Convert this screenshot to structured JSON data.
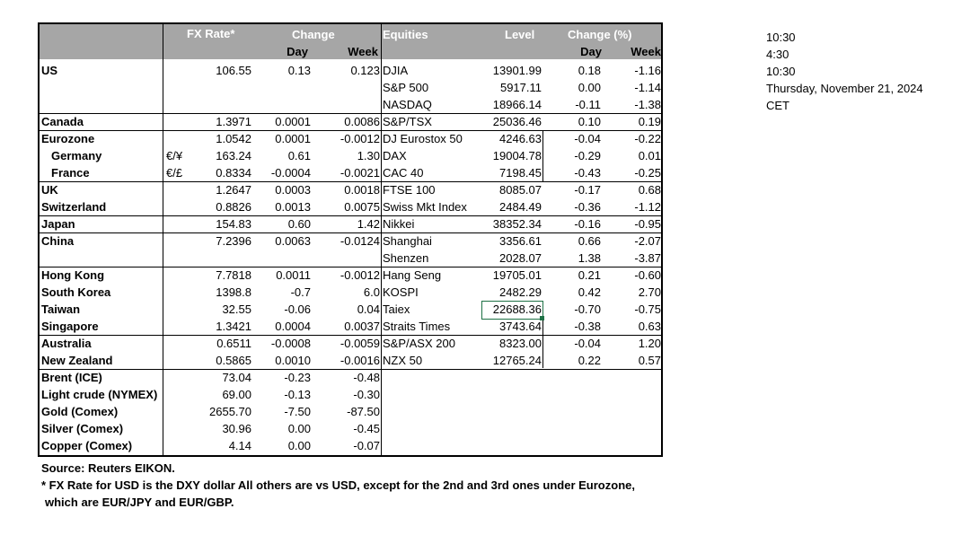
{
  "header": {
    "fx_rate": "FX Rate*",
    "change": "Change",
    "day": "Day",
    "week": "Week",
    "equities": "Equities",
    "level": "Level",
    "change_pct": "Change (%)",
    "eq_day": "Day",
    "eq_week": "Week"
  },
  "rows": [
    {
      "country": "US",
      "ind": false,
      "sym": "",
      "fx": "106.55",
      "day": "0.13",
      "week": "0.123",
      "eq": "DJIA",
      "level": "13901.99",
      "eday": "0.18",
      "eweek": "-1.16"
    },
    {
      "country": "",
      "ind": false,
      "sym": "",
      "fx": "",
      "day": "",
      "week": "",
      "eq": "S&P 500",
      "level": "5917.11",
      "eday": "0.00",
      "eweek": "-1.14"
    },
    {
      "country": "",
      "ind": false,
      "sym": "",
      "fx": "",
      "day": "",
      "week": "",
      "eq": "NASDAQ",
      "level": "18966.14",
      "eday": "-0.11",
      "eweek": "-1.38"
    },
    {
      "country": "Canada",
      "ind": false,
      "sym": "",
      "fx": "1.3971",
      "day": "0.0001",
      "week": "0.0086",
      "eq": "S&P/TSX",
      "level": "25036.46",
      "eday": "0.10",
      "eweek": "0.19"
    },
    {
      "country": "Eurozone",
      "ind": false,
      "sym": "",
      "fx": "1.0542",
      "day": "0.0001",
      "week": "-0.0012",
      "eq": "DJ Eurostox 50",
      "level": "4246.63",
      "eday": "-0.04",
      "eweek": "-0.22"
    },
    {
      "country": "Germany",
      "ind": true,
      "sym": "€/¥",
      "fx": "163.24",
      "day": "0.61",
      "week": "1.30",
      "eq": "DAX",
      "level": "19004.78",
      "eday": "-0.29",
      "eweek": "0.01"
    },
    {
      "country": "France",
      "ind": true,
      "sym": "€/£",
      "fx": "0.8334",
      "day": "-0.0004",
      "week": "-0.0021",
      "eq": "CAC 40",
      "level": "7198.45",
      "eday": "-0.43",
      "eweek": "-0.25"
    },
    {
      "country": "UK",
      "ind": false,
      "sym": "",
      "fx": "1.2647",
      "day": "0.0003",
      "week": "0.0018",
      "eq": "FTSE 100",
      "level": "8085.07",
      "eday": "-0.17",
      "eweek": "0.68"
    },
    {
      "country": "Switzerland",
      "ind": false,
      "sym": "",
      "fx": "0.8826",
      "day": "0.0013",
      "week": "0.0075",
      "eq": "Swiss Mkt Index",
      "level": "2484.49",
      "eday": "-0.36",
      "eweek": "-1.12"
    },
    {
      "country": "Japan",
      "ind": false,
      "sym": "",
      "fx": "154.83",
      "day": "0.60",
      "week": "1.42",
      "eq": "Nikkei",
      "level": "38352.34",
      "eday": "-0.16",
      "eweek": "-0.95"
    },
    {
      "country": "China",
      "ind": false,
      "sym": "",
      "fx": "7.2396",
      "day": "0.0063",
      "week": "-0.0124",
      "eq": "Shanghai",
      "level": "3356.61",
      "eday": "0.66",
      "eweek": "-2.07"
    },
    {
      "country": "",
      "ind": false,
      "sym": "",
      "fx": "",
      "day": "",
      "week": "",
      "eq": "Shenzen",
      "level": "2028.07",
      "eday": "1.38",
      "eweek": "-3.87"
    },
    {
      "country": "Hong Kong",
      "ind": false,
      "sym": "",
      "fx": "7.7818",
      "day": "0.0011",
      "week": "-0.0012",
      "eq": "Hang Seng",
      "level": "19705.01",
      "eday": "0.21",
      "eweek": "-0.60"
    },
    {
      "country": "South Korea",
      "ind": false,
      "sym": "",
      "fx": "1398.8",
      "day": "-0.7",
      "week": "6.0",
      "eq": "KOSPI",
      "level": "2482.29",
      "eday": "0.42",
      "eweek": "2.70"
    },
    {
      "country": "Taiwan",
      "ind": false,
      "sym": "",
      "fx": "32.55",
      "day": "-0.06",
      "week": "0.04",
      "eq": "Taiex",
      "level": "22688.36",
      "eday": "-0.70",
      "eweek": "-0.75"
    },
    {
      "country": "Singapore",
      "ind": false,
      "sym": "",
      "fx": "1.3421",
      "day": "0.0004",
      "week": "0.0037",
      "eq": "Straits Times",
      "level": "3743.64",
      "eday": "-0.38",
      "eweek": "0.63"
    },
    {
      "country": "Australia",
      "ind": false,
      "sym": "",
      "fx": "0.6511",
      "day": "-0.0008",
      "week": "-0.0059",
      "eq": "S&P/ASX  200",
      "level": "8323.00",
      "eday": "-0.04",
      "eweek": "1.20"
    },
    {
      "country": "New Zealand",
      "ind": false,
      "sym": "",
      "fx": "0.5865",
      "day": "0.0010",
      "week": "-0.0016",
      "eq": "NZX 50",
      "level": "12765.24",
      "eday": "0.22",
      "eweek": "0.57"
    },
    {
      "country": "Brent (ICE)",
      "ind": false,
      "sym": "",
      "fx": "73.04",
      "day": "-0.23",
      "week": "-0.48",
      "eq": "",
      "level": "",
      "eday": "",
      "eweek": ""
    },
    {
      "country": "Light crude (NYMEX)",
      "ind": false,
      "sym": "",
      "fx": "69.00",
      "day": "-0.13",
      "week": "-0.30",
      "eq": "",
      "level": "",
      "eday": "",
      "eweek": ""
    },
    {
      "country": "Gold (Comex)",
      "ind": false,
      "sym": "",
      "fx": "2655.70",
      "day": "-7.50",
      "week": "-87.50",
      "eq": "",
      "level": "",
      "eday": "",
      "eweek": ""
    },
    {
      "country": "Silver (Comex)",
      "ind": false,
      "sym": "",
      "fx": "30.96",
      "day": "0.00",
      "week": "-0.45",
      "eq": "",
      "level": "",
      "eday": "",
      "eweek": ""
    },
    {
      "country": "Copper (Comex)",
      "ind": false,
      "sym": "",
      "fx": "4.14",
      "day": "0.00",
      "week": "-0.07",
      "eq": "",
      "level": "",
      "eday": "",
      "eweek": ""
    }
  ],
  "notes": {
    "source": "Source:  Reuters EIKON.",
    "footnote1": "* FX Rate for USD is the DXY dollar  All others are vs USD, except for the 2nd and 3rd ones under Eurozone,",
    "footnote2": "which are EUR/JPY and EUR/GBP."
  },
  "times": [
    "10:30",
    "4:30",
    "10:30",
    "Thursday, November 21, 2024",
    "CET"
  ],
  "colors": {
    "header_bg": "#a6a6a6",
    "selection": "#1e7145"
  }
}
